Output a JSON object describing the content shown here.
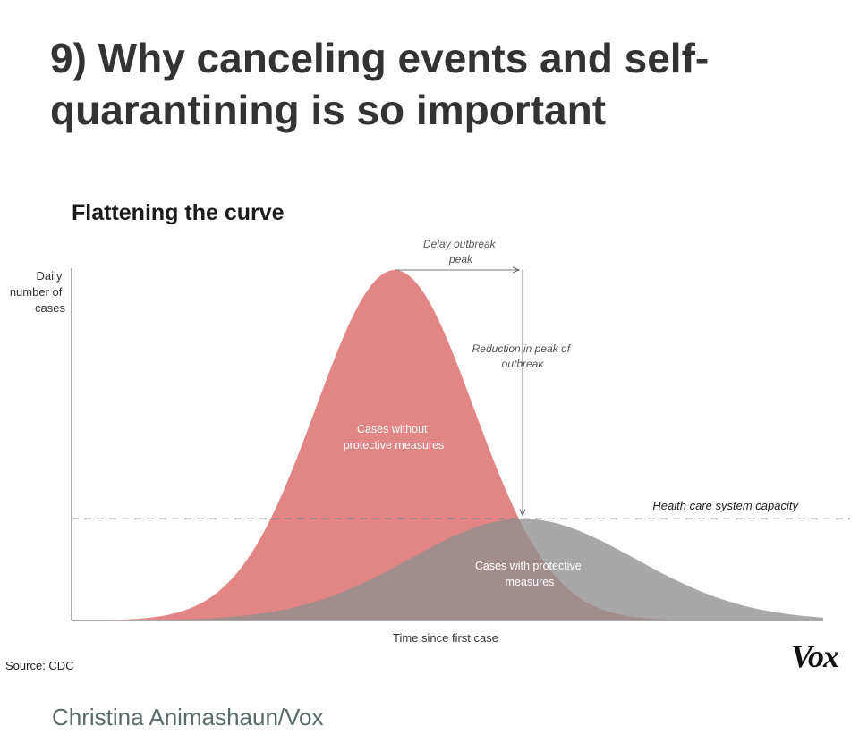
{
  "headline": "9) Why canceling events and self-quarantining is so important",
  "chart_data": {
    "type": "area",
    "title": "Flattening the curve",
    "xlabel": "Time since first case",
    "ylabel": "Daily number of cases",
    "series": [
      {
        "name": "Cases without protective measures",
        "peak_x": 0.43,
        "peak_y": 1.0,
        "color": "#e07b7b"
      },
      {
        "name": "Cases with protective measures",
        "peak_x": 0.6,
        "peak_y": 0.29,
        "color": "#8f8f8f"
      }
    ],
    "capacity": {
      "label": "Health care system capacity",
      "y": 0.29
    },
    "annotations": {
      "delay": "Delay outbreak peak",
      "reduction": "Reduction in peak of outbreak"
    },
    "source": "Source: CDC"
  },
  "logo": "Vox",
  "credit": "Christina Animashaun/Vox"
}
